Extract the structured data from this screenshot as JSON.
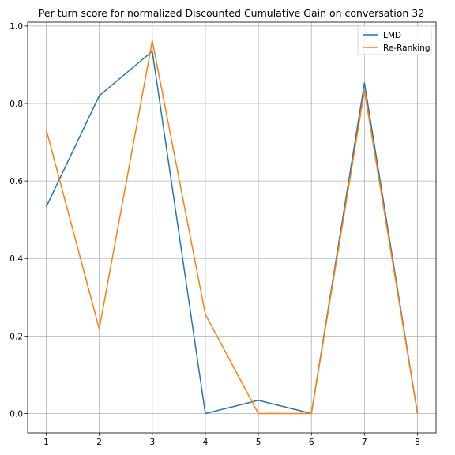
{
  "chart_data": {
    "type": "line",
    "title": "Per turn score for normalized Discounted Cumulative Gain on conversation 32",
    "xlabel": "",
    "ylabel": "",
    "x": [
      1,
      2,
      3,
      4,
      5,
      6,
      7,
      8
    ],
    "series": [
      {
        "name": "LMD",
        "color": "#1f77b4",
        "values": [
          0.533,
          0.82,
          0.935,
          0.0,
          0.034,
          0.0,
          0.853,
          0.0
        ]
      },
      {
        "name": "Re-Ranking",
        "color": "#ff7f0e",
        "values": [
          0.733,
          0.218,
          0.962,
          0.256,
          0.0,
          0.0,
          0.833,
          0.0
        ]
      }
    ],
    "xticks": [
      1,
      2,
      3,
      4,
      5,
      6,
      7,
      8
    ],
    "yticks": [
      0.0,
      0.2,
      0.4,
      0.6,
      0.8,
      1.0
    ],
    "ytick_labels": [
      "0.0",
      "0.2",
      "0.4",
      "0.6",
      "0.8",
      "1.0"
    ],
    "xlim": [
      0.65,
      8.35
    ],
    "ylim": [
      -0.05,
      1.01
    ],
    "grid": true,
    "legend_position": "top-right"
  }
}
